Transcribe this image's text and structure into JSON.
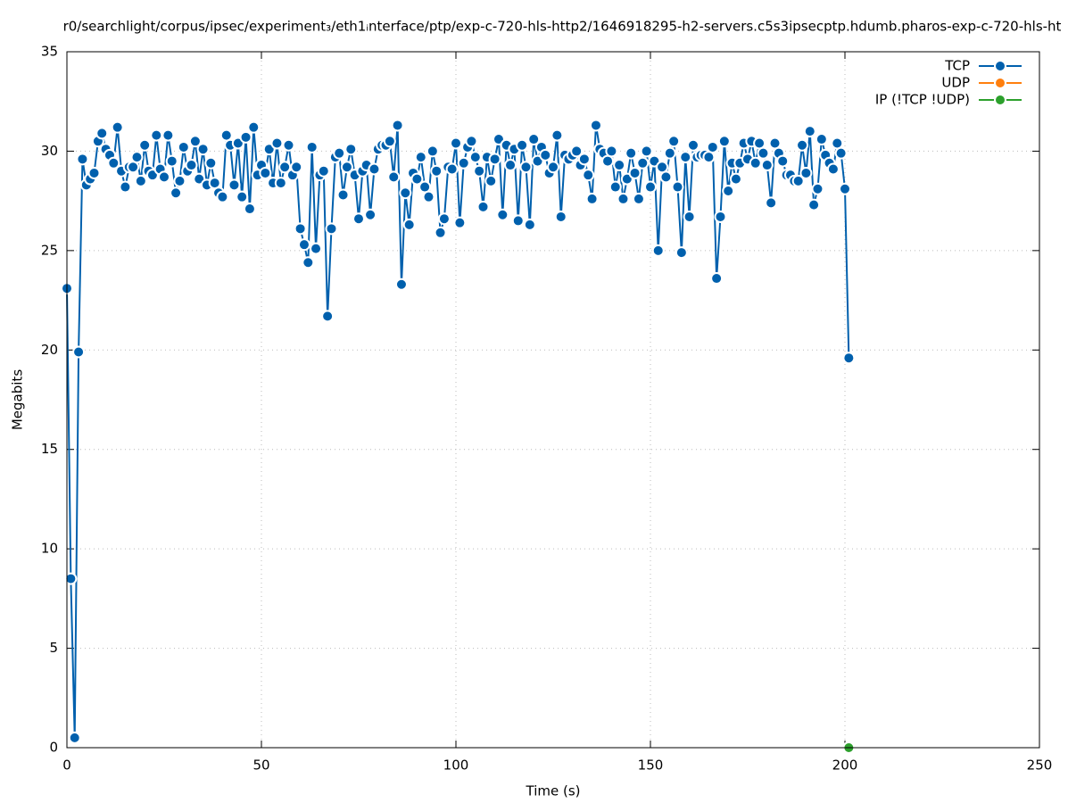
{
  "chart_data": {
    "type": "line",
    "title": "r0/searchlight/corpus/ipsec/experiment₃/eth1ᵢnterface/ptp/exp-c-720-hls-http2/1646918295-h2-servers.c5s3ipsecptp.hdumb.pharos-exp-c-720-hls-ht",
    "xlabel": "Time (s)",
    "ylabel": "Megabits",
    "xlim": [
      0,
      250
    ],
    "xticks": [
      0,
      50,
      100,
      150,
      200,
      250
    ],
    "ylim": [
      0,
      35
    ],
    "yticks": [
      0,
      5,
      10,
      15,
      20,
      25,
      30,
      35
    ],
    "grid": true,
    "legend": "top-right",
    "series": [
      {
        "name": "TCP",
        "color": "#0060ad",
        "x": [
          0,
          1,
          2,
          3,
          4,
          5,
          6,
          7,
          8,
          9,
          10,
          11,
          12,
          13,
          14,
          15,
          16,
          17,
          18,
          19,
          20,
          21,
          22,
          23,
          24,
          25,
          26,
          27,
          28,
          29,
          30,
          31,
          32,
          33,
          34,
          35,
          36,
          37,
          38,
          39,
          40,
          41,
          42,
          43,
          44,
          45,
          46,
          47,
          48,
          49,
          50,
          51,
          52,
          53,
          54,
          55,
          56,
          57,
          58,
          59,
          60,
          61,
          62,
          63,
          64,
          65,
          66,
          67,
          68,
          69,
          70,
          71,
          72,
          73,
          74,
          75,
          76,
          77,
          78,
          79,
          80,
          81,
          82,
          83,
          84,
          85,
          86,
          87,
          88,
          89,
          90,
          91,
          92,
          93,
          94,
          95,
          96,
          97,
          98,
          99,
          100,
          101,
          102,
          103,
          104,
          105,
          106,
          107,
          108,
          109,
          110,
          111,
          112,
          113,
          114,
          115,
          116,
          117,
          118,
          119,
          120,
          121,
          122,
          123,
          124,
          125,
          126,
          127,
          128,
          129,
          130,
          131,
          132,
          133,
          134,
          135,
          136,
          137,
          138,
          139,
          140,
          141,
          142,
          143,
          144,
          145,
          146,
          147,
          148,
          149,
          150,
          151,
          152,
          153,
          154,
          155,
          156,
          157,
          158,
          159,
          160,
          161,
          162,
          163,
          164,
          165,
          166,
          167,
          168,
          169,
          170,
          171,
          172,
          173,
          174,
          175,
          176,
          177,
          178,
          179,
          180,
          181,
          182,
          183,
          184,
          185,
          186,
          187,
          188,
          189,
          190,
          191,
          192,
          193,
          194,
          195,
          196,
          197,
          198,
          199,
          200,
          201
        ],
        "values": [
          23.1,
          8.5,
          0.5,
          19.9,
          29.6,
          28.3,
          28.6,
          28.9,
          30.5,
          30.9,
          30.1,
          29.8,
          29.4,
          31.2,
          29.0,
          28.2,
          29.2,
          29.2,
          29.7,
          28.5,
          30.3,
          29.0,
          28.8,
          30.8,
          29.1,
          28.7,
          30.8,
          29.5,
          27.9,
          28.5,
          30.2,
          29.0,
          29.3,
          30.5,
          28.6,
          30.1,
          28.3,
          29.4,
          28.4,
          27.9,
          27.7,
          30.8,
          30.3,
          28.3,
          30.4,
          27.7,
          30.7,
          27.1,
          31.2,
          28.8,
          29.3,
          28.9,
          30.1,
          28.4,
          30.4,
          28.4,
          29.2,
          30.3,
          28.8,
          29.2,
          26.1,
          25.3,
          24.4,
          30.2,
          25.1,
          28.8,
          29.0,
          21.7,
          26.1,
          29.7,
          29.9,
          27.8,
          29.2,
          30.1,
          28.8,
          26.6,
          29.0,
          29.3,
          26.8,
          29.1,
          30.1,
          30.3,
          30.3,
          30.5,
          28.7,
          31.3,
          23.3,
          27.9,
          26.3,
          28.9,
          28.6,
          29.7,
          28.2,
          27.7,
          30.0,
          29.0,
          25.9,
          26.6,
          29.2,
          29.1,
          30.4,
          26.4,
          29.4,
          30.2,
          30.5,
          29.7,
          29.0,
          27.2,
          29.7,
          28.5,
          29.6,
          30.6,
          26.8,
          30.3,
          29.3,
          30.1,
          26.5,
          30.3,
          29.2,
          26.3,
          30.6,
          29.5,
          30.2,
          29.8,
          28.9,
          29.2,
          30.8,
          26.7,
          29.8,
          29.6,
          29.8,
          30.0,
          29.3,
          29.6,
          28.8,
          27.6,
          31.3,
          30.1,
          29.9,
          29.5,
          30.0,
          28.2,
          29.3,
          27.6,
          28.6,
          29.9,
          28.9,
          27.6,
          29.4,
          30.0,
          28.2,
          29.5,
          25.0,
          29.2,
          28.7,
          29.9,
          30.5,
          28.2,
          24.9,
          29.7,
          26.7,
          30.3,
          29.7,
          29.8,
          29.8,
          29.7,
          30.2,
          23.6,
          26.7,
          30.5,
          28.0,
          29.4,
          28.6,
          29.4,
          30.4,
          29.6,
          30.5,
          29.4,
          30.4,
          29.9,
          29.3,
          27.4,
          30.4,
          29.9,
          29.5,
          28.8,
          28.8,
          28.5,
          28.5,
          30.3,
          28.9,
          31.0,
          27.3,
          28.1,
          30.6,
          29.8,
          29.4,
          29.1,
          30.4,
          29.9,
          28.1,
          19.6
        ]
      },
      {
        "name": "UDP",
        "color": "#ff7f0e",
        "x": [],
        "values": []
      },
      {
        "name": "IP (!TCP  !UDP)",
        "color": "#2ca02c",
        "x": [
          201
        ],
        "values": [
          0
        ]
      }
    ]
  }
}
